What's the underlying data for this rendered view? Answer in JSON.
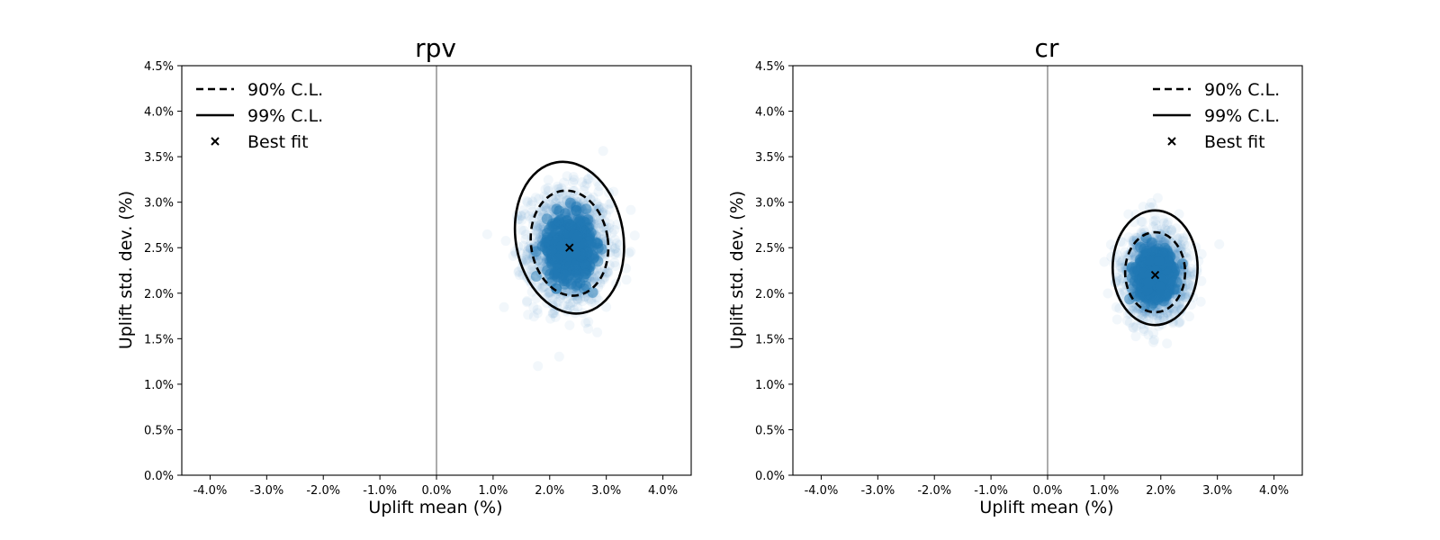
{
  "chart_data": [
    {
      "type": "scatter",
      "title": "rpv",
      "xlabel": "Uplift mean (%)",
      "ylabel": "Uplift std. dev. (%)",
      "xlim": [
        -0.045,
        0.045
      ],
      "ylim": [
        0.0,
        0.045
      ],
      "x_ticks": [
        -0.04,
        -0.03,
        -0.02,
        -0.01,
        0.0,
        0.01,
        0.02,
        0.03,
        0.04
      ],
      "x_tick_labels": [
        "-4.0%",
        "-3.0%",
        "-2.0%",
        "-1.0%",
        "0.0%",
        "1.0%",
        "2.0%",
        "3.0%",
        "4.0%"
      ],
      "y_ticks": [
        0.0,
        0.005,
        0.01,
        0.015,
        0.02,
        0.025,
        0.03,
        0.035,
        0.04,
        0.045
      ],
      "y_tick_labels": [
        "0.0%",
        "0.5%",
        "1.0%",
        "1.5%",
        "2.0%",
        "2.5%",
        "3.0%",
        "3.5%",
        "4.0%",
        "4.5%"
      ],
      "reference_line_x": 0.0,
      "legend_position": "upper left",
      "legend": [
        "90% C.L.",
        "99% C.L.",
        "Best fit"
      ],
      "best_fit": {
        "x": 0.0235,
        "y": 0.025
      },
      "contours": [
        {
          "name": "90% C.L.",
          "style": "dashed",
          "center": [
            0.0235,
            0.0255
          ],
          "radius_x": 0.0068,
          "radius_y": 0.0058,
          "tilt_deg": -8
        },
        {
          "name": "99% C.L.",
          "style": "solid",
          "center": [
            0.0235,
            0.0261
          ],
          "radius_x": 0.0095,
          "radius_y": 0.0084,
          "tilt_deg": -10
        }
      ],
      "samples": {
        "center": [
          0.0235,
          0.025
        ],
        "std_x": 0.0036,
        "std_y": 0.0031,
        "color": "#1f77b4"
      }
    },
    {
      "type": "scatter",
      "title": "cr",
      "xlabel": "Uplift mean (%)",
      "ylabel": "Uplift std. dev. (%)",
      "xlim": [
        -0.045,
        0.045
      ],
      "ylim": [
        0.0,
        0.045
      ],
      "x_ticks": [
        -0.04,
        -0.03,
        -0.02,
        -0.01,
        0.0,
        0.01,
        0.02,
        0.03,
        0.04
      ],
      "x_tick_labels": [
        "-4.0%",
        "-3.0%",
        "-2.0%",
        "-1.0%",
        "0.0%",
        "1.0%",
        "2.0%",
        "3.0%",
        "4.0%"
      ],
      "y_ticks": [
        0.0,
        0.005,
        0.01,
        0.015,
        0.02,
        0.025,
        0.03,
        0.035,
        0.04,
        0.045
      ],
      "y_tick_labels": [
        "0.0%",
        "0.5%",
        "1.0%",
        "1.5%",
        "2.0%",
        "2.5%",
        "3.0%",
        "3.5%",
        "4.0%",
        "4.5%"
      ],
      "reference_line_x": 0.0,
      "legend_position": "upper right",
      "legend": [
        "90% C.L.",
        "99% C.L.",
        "Best fit"
      ],
      "best_fit": {
        "x": 0.019,
        "y": 0.022
      },
      "contours": [
        {
          "name": "90% C.L.",
          "style": "dashed",
          "center": [
            0.019,
            0.0223
          ],
          "radius_x": 0.0053,
          "radius_y": 0.0044,
          "tilt_deg": 0
        },
        {
          "name": "99% C.L.",
          "style": "solid",
          "center": [
            0.019,
            0.0228
          ],
          "radius_x": 0.0075,
          "radius_y": 0.0063,
          "tilt_deg": 0
        }
      ],
      "samples": {
        "center": [
          0.019,
          0.022
        ],
        "std_x": 0.0028,
        "std_y": 0.0024,
        "color": "#1f77b4"
      }
    }
  ]
}
